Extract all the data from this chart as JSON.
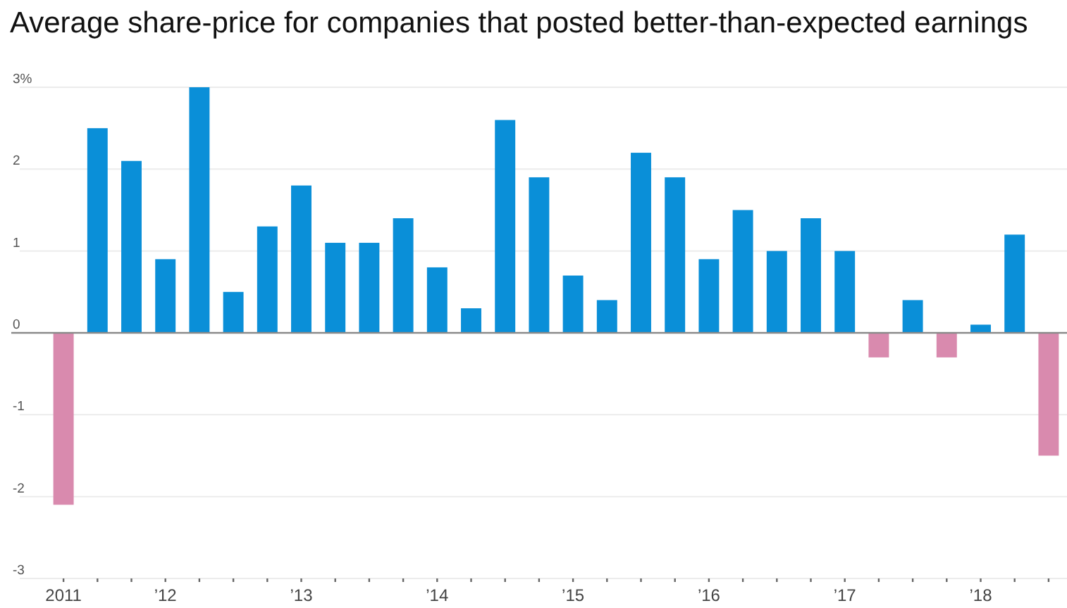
{
  "chart_data": {
    "type": "bar",
    "title": "Average share-price for companies that posted better-than-expected earnings",
    "categories": [
      "2011",
      null,
      null,
      "’12",
      null,
      null,
      null,
      "’13",
      null,
      null,
      null,
      "’14",
      null,
      null,
      null,
      "’15",
      null,
      null,
      null,
      "’16",
      null,
      null,
      null,
      "’17",
      null,
      null,
      null,
      "’18",
      null,
      null
    ],
    "values": [
      -2.1,
      2.5,
      2.1,
      0.9,
      3.0,
      0.5,
      1.3,
      1.8,
      1.1,
      1.1,
      1.4,
      0.8,
      0.3,
      2.6,
      1.9,
      0.7,
      0.4,
      2.2,
      1.9,
      0.9,
      1.5,
      1.0,
      1.4,
      1.0,
      -0.3,
      0.4,
      -0.3,
      0.1,
      1.2,
      -1.5
    ],
    "colors": [
      "#d98aae",
      "#0a8fd8",
      "#0a8fd8",
      "#0a8fd8",
      "#0a8fd8",
      "#0a8fd8",
      "#0a8fd8",
      "#0a8fd8",
      "#0a8fd8",
      "#0a8fd8",
      "#0a8fd8",
      "#0a8fd8",
      "#0a8fd8",
      "#0a8fd8",
      "#0a8fd8",
      "#0a8fd8",
      "#0a8fd8",
      "#0a8fd8",
      "#0a8fd8",
      "#0a8fd8",
      "#0a8fd8",
      "#0a8fd8",
      "#0a8fd8",
      "#0a8fd8",
      "#d98aae",
      "#0a8fd8",
      "#d98aae",
      "#0a8fd8",
      "#0a8fd8",
      "#d98aae"
    ],
    "ylim": [
      -3,
      3
    ],
    "yticks": [
      {
        "value": 3,
        "label": "3%"
      },
      2,
      1,
      0,
      -1,
      -2,
      -3
    ],
    "grid": "y"
  }
}
